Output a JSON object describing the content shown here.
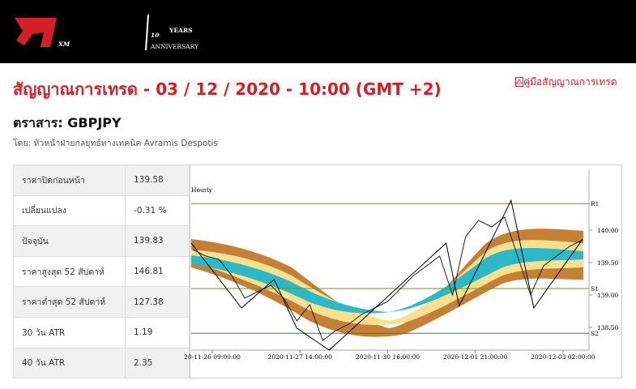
{
  "header": {
    "logo": "XM",
    "badge": "10",
    "badge_sub": "YEARS",
    "badge_caption": "ANNIVERSARY"
  },
  "title": "สัญญาณการเทรด - 03 / 12 / 2020 - 10:00 (GMT +2)",
  "guide_link": "คู่มือสัญญาณการเทรด",
  "instrument": "ตราสาร: GBPJPY",
  "author": "โดย: หัวหน้าฝ่ายกลยุทธ์ทางเทคนิค Avramis Despotis",
  "table": {
    "rows": [
      [
        "ราคาปิดก่อนหน้า",
        139.58
      ],
      [
        "เปลี่ยนแปลง",
        "-0.31 %"
      ],
      [
        "ปัจจุบัน",
        139.83
      ],
      [
        "ราคาสูงสุด 52 สัปดาห์",
        146.81
      ],
      [
        "ราคาต่ำสุด 52 สัปดาห์",
        127.38
      ],
      [
        "30 วัน ATR",
        1.19
      ],
      [
        "40 วัน ATR",
        2.35
      ]
    ]
  },
  "chart_data": {
    "type": "line",
    "title": "Hourly",
    "xlim": [
      -6.5,
      116
    ],
    "xticks": [
      {
        "value": 0,
        "label": "20-11-26 09:00:00"
      },
      {
        "value": 27,
        "label": "2020-11-27 14:00:00"
      },
      {
        "value": 54,
        "label": "2020-11-30 16:00:00"
      },
      {
        "value": 81,
        "label": "2020-12-01 21:00:00"
      },
      {
        "value": 108,
        "label": "2020-12-03 02:00:00"
      }
    ],
    "ylim": [
      138.15,
      140.925
    ],
    "yticks": [
      {
        "value": 138.5,
        "label": "138.50"
      },
      {
        "value": 139,
        "label": "139.00"
      },
      {
        "value": 139.5,
        "label": "139.50"
      },
      {
        "value": 140,
        "label": "140.00"
      }
    ],
    "levels": [
      {
        "name": "R1",
        "value": 140.41,
        "color": "#d9534f"
      },
      {
        "name": "S1",
        "value": 139.1,
        "color": "#6a9a1f"
      },
      {
        "name": "S2",
        "value": 138.41,
        "color": "#2e8b2e"
      }
    ],
    "series": [
      {
        "name": "Price",
        "color": "#222222",
        "x": [
          -6,
          -2,
          2,
          6,
          10,
          14,
          18,
          22,
          26,
          30,
          34,
          38,
          42,
          46,
          50,
          54,
          58,
          62,
          66,
          70,
          74,
          78,
          82,
          86,
          90,
          94,
          98,
          102,
          106,
          110,
          114
        ],
        "values": [
          139.7,
          139.6,
          139.55,
          139.3,
          138.95,
          139.05,
          139.15,
          138.95,
          138.6,
          138.85,
          138.3,
          138.45,
          138.55,
          138.7,
          138.8,
          138.9,
          139.1,
          139.3,
          139.45,
          139.6,
          139.0,
          139.9,
          140.15,
          140.05,
          140.2,
          139.6,
          139.0,
          139.45,
          139.6,
          139.75,
          139.85
        ]
      },
      {
        "name": "ZigZag",
        "color": "#000000",
        "x": [
          -6.5,
          9,
          19,
          26,
          36,
          72,
          76,
          92,
          99,
          114
        ],
        "values": [
          139.8,
          138.8,
          139.24,
          138.49,
          138.15,
          139.8,
          138.83,
          140.46,
          138.8,
          139.86
        ]
      }
    ]
  }
}
